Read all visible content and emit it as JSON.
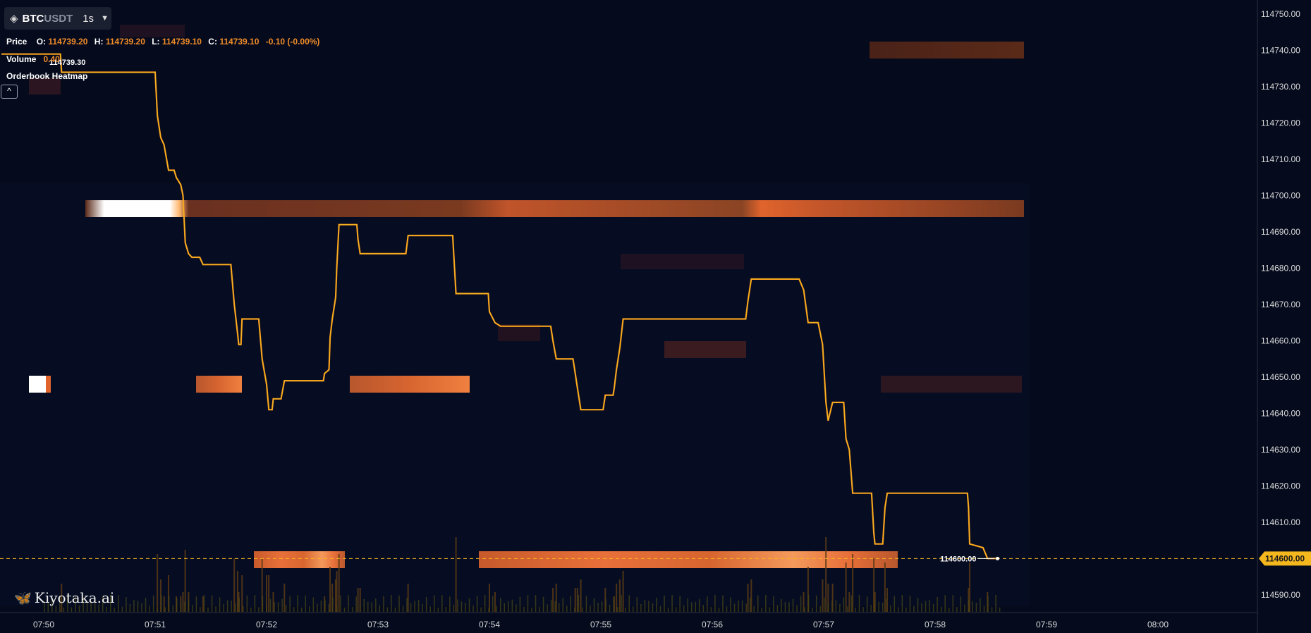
{
  "symbol": {
    "icon": "binance-diamond-icon",
    "base": "BTC",
    "quote": "USDT",
    "interval": "1s"
  },
  "legend": {
    "price_label": "Price",
    "o_label": "O:",
    "o": "114739.20",
    "h_label": "H:",
    "h": "114739.20",
    "l_label": "L:",
    "l": "114739.10",
    "c_label": "C:",
    "c": "114739.10",
    "change": "-0.10 (-0.00%)",
    "volume_label": "Volume",
    "volume": "0.40",
    "indicator": "Orderbook Heatmap",
    "collapse_glyph": "^"
  },
  "watermark": {
    "text": "Kiyotaka.ai",
    "icon": "butterfly-icon"
  },
  "colors": {
    "background": "#050b1d",
    "price_line": "#f6a21e",
    "current_price": "#f5b71e"
  },
  "chart_data": {
    "type": "line",
    "title": "",
    "y_ticks": [
      114750,
      114740,
      114730,
      114720,
      114710,
      114700,
      114690,
      114680,
      114670,
      114660,
      114650,
      114640,
      114630,
      114620,
      114610,
      114600,
      114590
    ],
    "y_tick_labels": [
      "114750.00",
      "114740.00",
      "114730.00",
      "114720.00",
      "114710.00",
      "114700.00",
      "114690.00",
      "114680.00",
      "114670.00",
      "114660.00",
      "114650.00",
      "114640.00",
      "114630.00",
      "114620.00",
      "114610.00",
      "114600.00",
      "114590.00"
    ],
    "ylim": [
      114585.3,
      114753.9
    ],
    "x_ticks": [
      "07:50",
      "07:51",
      "07:52",
      "07:53",
      "07:54",
      "07:55",
      "07:56",
      "07:57",
      "07:58",
      "07:59",
      "08:00"
    ],
    "x_tick_minutes": [
      0,
      1,
      2,
      3,
      4,
      5,
      6,
      7,
      8,
      9,
      10
    ],
    "xlim_minutes": [
      -0.38,
      10.9
    ],
    "current_price": "114600.00",
    "last_marker_label": "114600.00",
    "first_marker_label": "114739.30",
    "price_series": [
      [
        -0.38,
        114739
      ],
      [
        0.15,
        114739
      ],
      [
        0.16,
        114734
      ],
      [
        1.0,
        114734
      ],
      [
        1.02,
        114722
      ],
      [
        1.05,
        114716
      ],
      [
        1.08,
        114714
      ],
      [
        1.12,
        114707
      ],
      [
        1.17,
        114707
      ],
      [
        1.19,
        114705
      ],
      [
        1.23,
        114703
      ],
      [
        1.25,
        114700
      ],
      [
        1.27,
        114687
      ],
      [
        1.3,
        114684
      ],
      [
        1.33,
        114683
      ],
      [
        1.4,
        114683
      ],
      [
        1.43,
        114681
      ],
      [
        1.68,
        114681
      ],
      [
        1.71,
        114670
      ],
      [
        1.74,
        114662
      ],
      [
        1.75,
        114659
      ],
      [
        1.77,
        114659
      ],
      [
        1.78,
        114666
      ],
      [
        1.93,
        114666
      ],
      [
        1.96,
        114655
      ],
      [
        2.0,
        114648
      ],
      [
        2.02,
        114641
      ],
      [
        2.05,
        114641
      ],
      [
        2.06,
        114644
      ],
      [
        2.13,
        114644
      ],
      [
        2.16,
        114649
      ],
      [
        2.51,
        114649
      ],
      [
        2.52,
        114651
      ],
      [
        2.56,
        114652
      ],
      [
        2.57,
        114661
      ],
      [
        2.59,
        114666
      ],
      [
        2.62,
        114672
      ],
      [
        2.63,
        114680
      ],
      [
        2.65,
        114692
      ],
      [
        2.81,
        114692
      ],
      [
        2.82,
        114688
      ],
      [
        2.84,
        114684
      ],
      [
        3.25,
        114684
      ],
      [
        3.27,
        114689
      ],
      [
        3.67,
        114689
      ],
      [
        3.7,
        114673
      ],
      [
        3.99,
        114673
      ],
      [
        4.0,
        114668
      ],
      [
        4.05,
        114665
      ],
      [
        4.1,
        114664
      ],
      [
        4.55,
        114664
      ],
      [
        4.57,
        114660
      ],
      [
        4.6,
        114655
      ],
      [
        4.75,
        114655
      ],
      [
        4.77,
        114651
      ],
      [
        4.79,
        114647
      ],
      [
        4.82,
        114641
      ],
      [
        5.02,
        114641
      ],
      [
        5.04,
        114645
      ],
      [
        5.11,
        114645
      ],
      [
        5.12,
        114647
      ],
      [
        5.14,
        114652
      ],
      [
        5.17,
        114658
      ],
      [
        5.2,
        114666
      ],
      [
        6.3,
        114666
      ],
      [
        6.32,
        114671
      ],
      [
        6.35,
        114677
      ],
      [
        6.78,
        114677
      ],
      [
        6.82,
        114674
      ],
      [
        6.86,
        114665
      ],
      [
        6.95,
        114665
      ],
      [
        6.99,
        114659
      ],
      [
        7.02,
        114643
      ],
      [
        7.04,
        114638
      ],
      [
        7.08,
        114643
      ],
      [
        7.18,
        114643
      ],
      [
        7.2,
        114633
      ],
      [
        7.23,
        114630
      ],
      [
        7.26,
        114618
      ],
      [
        7.43,
        114618
      ],
      [
        7.45,
        114607
      ],
      [
        7.46,
        114604
      ],
      [
        7.53,
        114604
      ],
      [
        7.55,
        114614
      ],
      [
        7.57,
        114618
      ],
      [
        8.29,
        114618
      ],
      [
        8.3,
        114614
      ],
      [
        8.31,
        114604
      ],
      [
        8.43,
        114603
      ],
      [
        8.47,
        114600
      ],
      [
        8.56,
        114600
      ]
    ],
    "heatmap_levels": [
      {
        "price": 114697,
        "from": -0.38,
        "to": 8.56,
        "intensity": 0.45
      },
      {
        "price": 114647,
        "from": -0.38,
        "to": 3.96,
        "intensity": 0.55
      },
      {
        "price": 114597,
        "from": 1.88,
        "to": 7.66,
        "intensity": 0.7
      },
      {
        "price": 114740,
        "from": 7.44,
        "to": 8.84,
        "intensity": 0.25
      }
    ],
    "grid": false,
    "legend": "top-left"
  }
}
